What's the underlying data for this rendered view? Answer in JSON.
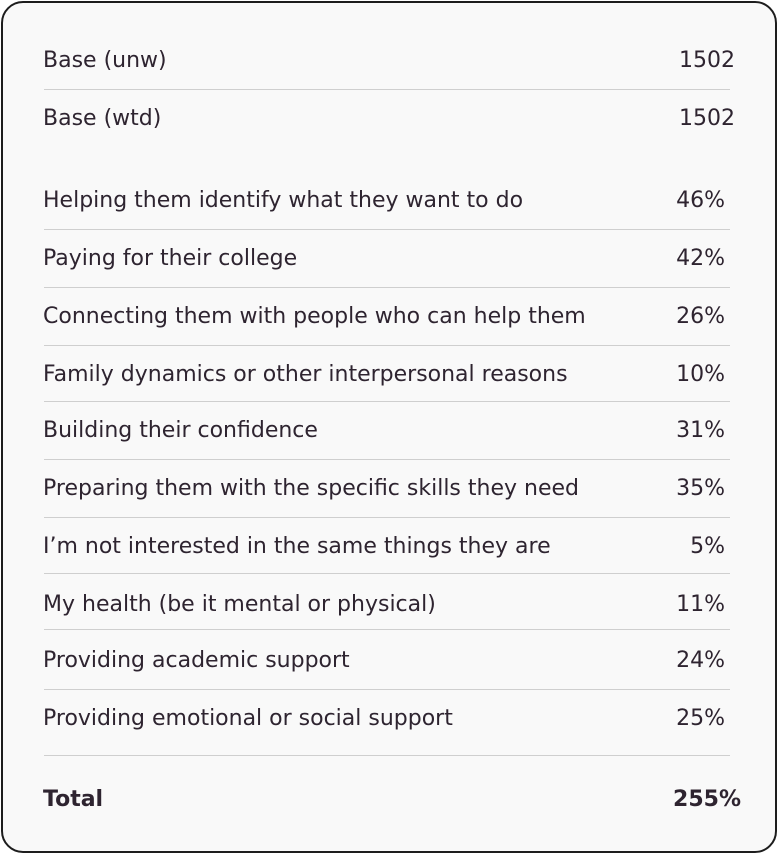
{
  "base_rows": [
    {
      "label": "Base (unw)",
      "value": "1502"
    },
    {
      "label": "Base (wtd)",
      "value": "1502"
    }
  ],
  "rows": [
    {
      "label": "Helping them identify what they want to do",
      "value": "46%"
    },
    {
      "label": "Paying for their college",
      "value": "42%"
    },
    {
      "label": "Connecting them with people who can help them",
      "value": "26%"
    },
    {
      "label": "Family dynamics or other interpersonal reasons",
      "value": "10%"
    },
    {
      "label": "Building their confidence",
      "value": "31%"
    },
    {
      "label": "Preparing them with the specific skills they need",
      "value": "35%"
    },
    {
      "label": "I’m not interested in the same things they are",
      "value": "5%"
    },
    {
      "label": "My health (be it mental or physical)",
      "value": "11%"
    },
    {
      "label": "Providing academic support",
      "value": "24%"
    },
    {
      "label": "Providing emotional or social support",
      "value": "25%"
    }
  ],
  "total": {
    "label": "Total",
    "value": "255%"
  }
}
